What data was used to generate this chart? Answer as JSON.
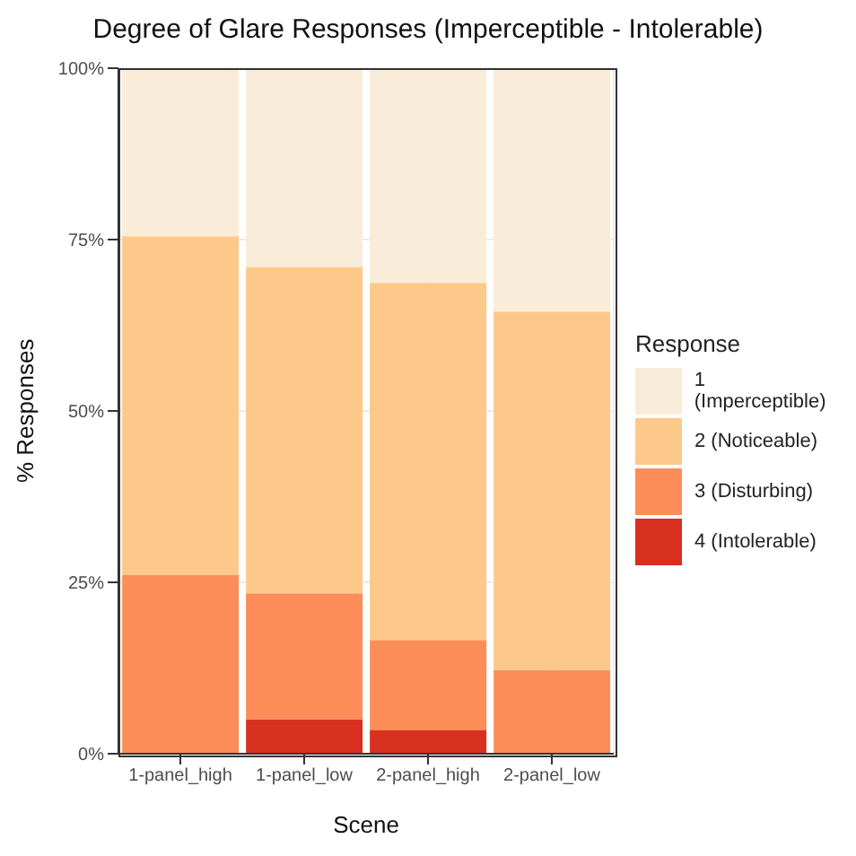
{
  "chart_data": {
    "type": "bar",
    "title": "Degree of Glare Responses (Imperceptible - Intolerable)",
    "xlabel": "Scene",
    "ylabel": "% Responses",
    "legend_title": "Response",
    "categories": [
      "1-panel_high",
      "1-panel_low",
      "2-panel_high",
      "2-panel_low"
    ],
    "stacked": true,
    "series": [
      {
        "name": "4 (Intolerable)",
        "color": "#d7301f",
        "values": [
          0,
          5.0,
          3.4,
          0
        ]
      },
      {
        "name": "3 (Disturbing)",
        "color": "#fc8d59",
        "values": [
          26.1,
          18.4,
          13.2,
          12.2
        ]
      },
      {
        "name": "2 (Noticeable)",
        "color": "#fdc98a",
        "values": [
          49.4,
          47.6,
          52.1,
          52.3
        ]
      },
      {
        "name": "1 (Imperceptible)",
        "color": "#f9ecd8",
        "values": [
          24.5,
          29.0,
          31.3,
          35.5
        ]
      }
    ],
    "ylim": [
      0,
      100
    ],
    "yticks": [
      {
        "value": 0,
        "label": "0%"
      },
      {
        "value": 25,
        "label": "25%"
      },
      {
        "value": 50,
        "label": "50%"
      },
      {
        "value": 75,
        "label": "75%"
      },
      {
        "value": 100,
        "label": "100%"
      }
    ],
    "grid": true,
    "legend": "right"
  }
}
